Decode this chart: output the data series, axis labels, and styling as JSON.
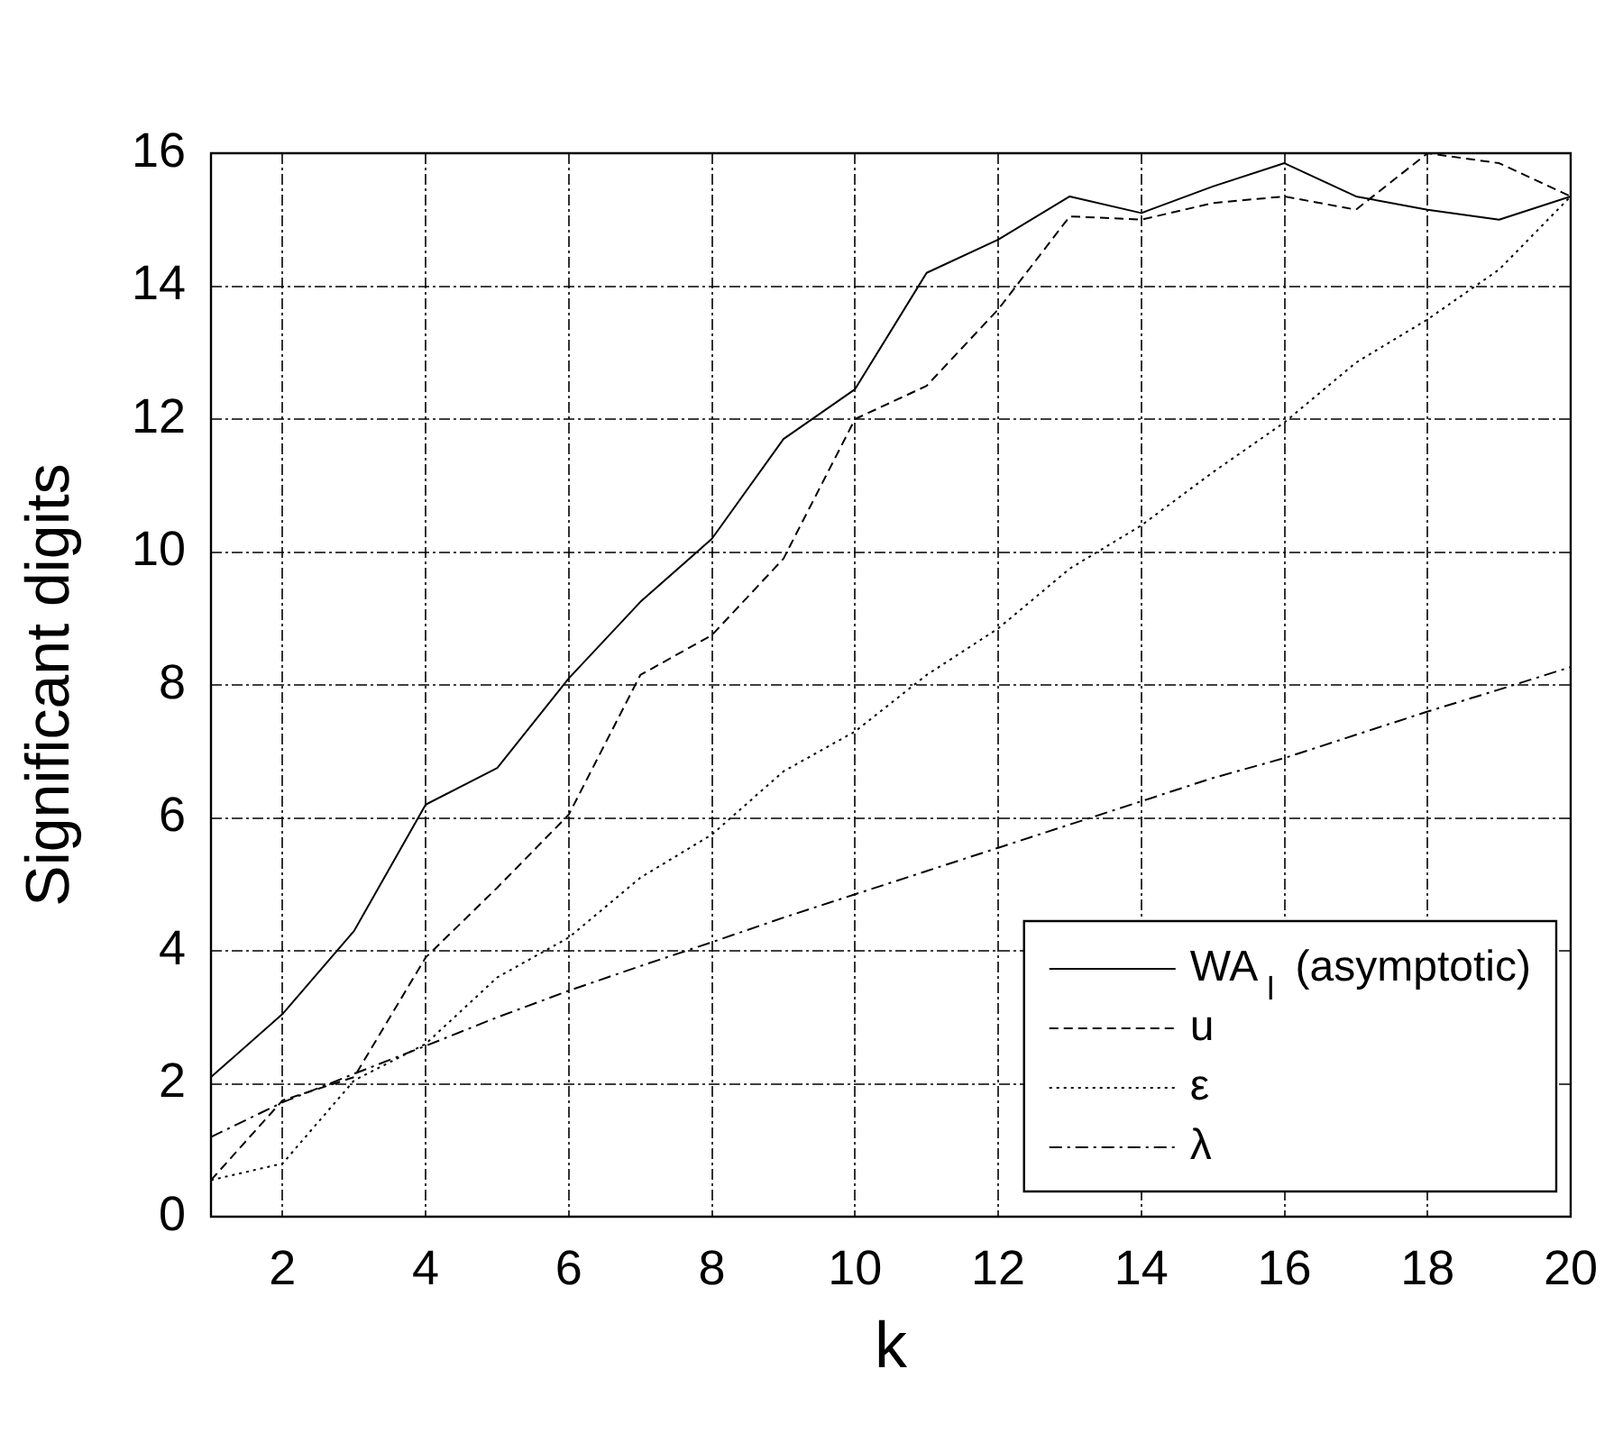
{
  "chart_data": {
    "type": "line",
    "xlabel": "k",
    "ylabel": "Significant digits",
    "x": [
      1,
      2,
      3,
      4,
      5,
      6,
      7,
      8,
      9,
      10,
      11,
      12,
      13,
      14,
      15,
      16,
      17,
      18,
      19,
      20
    ],
    "xlim": [
      1,
      20
    ],
    "xticks": [
      2,
      4,
      6,
      8,
      10,
      12,
      14,
      16,
      18,
      20
    ],
    "ylim": [
      0,
      16
    ],
    "yticks": [
      0,
      2,
      4,
      6,
      8,
      10,
      12,
      14,
      16
    ],
    "grid": true,
    "legend": "bottom right",
    "marker": "none",
    "series": [
      {
        "name": "WA$_{l}$ (asymptotic)",
        "color": "#000000",
        "line_style": "solid",
        "values": [
          2.1,
          3.05,
          4.3,
          6.2,
          6.75,
          8.1,
          9.25,
          10.2,
          11.7,
          12.45,
          14.2,
          14.7,
          15.35,
          15.1,
          15.5,
          15.85,
          15.35,
          15.15,
          15.0,
          15.35
        ]
      },
      {
        "name": "u",
        "color": "#000000",
        "line_style": "dashed",
        "values": [
          0.55,
          1.75,
          2.1,
          3.9,
          4.95,
          6.05,
          8.15,
          8.75,
          9.9,
          12.0,
          12.5,
          13.65,
          15.05,
          15.0,
          15.25,
          15.35,
          15.15,
          16.0,
          15.85,
          15.35
        ]
      },
      {
        "name": "ε",
        "color": "#000000",
        "line_style": "dotted",
        "values": [
          0.55,
          0.8,
          2.05,
          2.6,
          3.6,
          4.2,
          5.1,
          5.75,
          6.7,
          7.3,
          8.15,
          8.85,
          9.75,
          10.4,
          11.2,
          11.95,
          12.85,
          13.5,
          14.25,
          15.35
        ]
      },
      {
        "name": "λ",
        "color": "#000000",
        "line_style": "dashdot",
        "values": [
          1.2,
          1.72,
          2.15,
          2.57,
          3.0,
          3.4,
          3.77,
          4.13,
          4.5,
          4.85,
          5.2,
          5.55,
          5.9,
          6.25,
          6.6,
          6.9,
          7.25,
          7.6,
          7.93,
          8.27
        ]
      }
    ]
  }
}
